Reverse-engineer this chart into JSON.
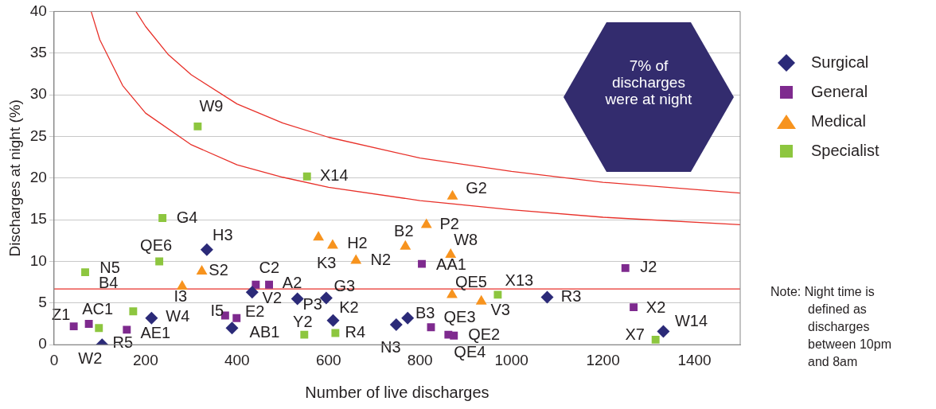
{
  "chart_data": {
    "type": "scatter",
    "xlabel": "Number of live discharges",
    "ylabel": "Discharges at night (%)",
    "xlim": [
      0,
      1500
    ],
    "xticks": [
      0,
      200,
      400,
      600,
      800,
      1000,
      1200,
      1400
    ],
    "ylim": [
      0,
      40
    ],
    "yticks": [
      0,
      5,
      10,
      15,
      20,
      25,
      30,
      35,
      40
    ],
    "grid": "y",
    "legend": "right",
    "series": [
      {
        "name": "Surgical",
        "color": "#2b2a78",
        "marker": "diamond",
        "x": [
          334,
          433,
          105,
          213,
          389,
          532,
          595,
          610,
          748,
          773,
          1078,
          1332
        ],
        "values": [
          11.4,
          6.3,
          0.0,
          3.2,
          2.0,
          5.5,
          5.6,
          2.9,
          2.4,
          3.2,
          5.7,
          1.6
        ]
      },
      {
        "name": "General",
        "color": "#7e2a8e",
        "marker": "square",
        "x": [
          441,
          470,
          43,
          76,
          159,
          374,
          399,
          804,
          824,
          862,
          874,
          1249,
          1267
        ],
        "values": [
          7.2,
          7.2,
          2.2,
          2.5,
          1.8,
          3.5,
          3.2,
          9.7,
          2.1,
          1.2,
          1.1,
          9.2,
          4.5
        ]
      },
      {
        "name": "Medical",
        "color": "#f7931e",
        "marker": "triangle",
        "x": [
          323,
          280,
          578,
          609,
          660,
          768,
          814,
          871,
          867,
          870,
          934
        ],
        "values": [
          8.8,
          7.0,
          12.9,
          11.9,
          10.1,
          11.8,
          14.4,
          17.8,
          10.8,
          6.0,
          5.2
        ]
      },
      {
        "name": "Specialist",
        "color": "#8dc63f",
        "marker": "square",
        "x": [
          314,
          237,
          230,
          68,
          70,
          98,
          173,
          553,
          547,
          615,
          970,
          1315
        ],
        "values": [
          26.2,
          15.2,
          10.0,
          8.7,
          null,
          2.0,
          4.0,
          20.2,
          1.2,
          1.4,
          6.0,
          0.6
        ]
      },
      {
        "type": "line",
        "color": "#e8312a",
        "marker": "none",
        "x": [
          81,
          100,
          150,
          200,
          300,
          400,
          500,
          600,
          800,
          1000,
          1200,
          1500
        ],
        "values": [
          40,
          36.6,
          31.1,
          27.8,
          24.0,
          21.6,
          20.1,
          18.9,
          17.3,
          16.2,
          15.3,
          14.4
        ]
      },
      {
        "type": "line",
        "color": "#e8312a",
        "marker": "none",
        "x": [
          179,
          200,
          250,
          300,
          400,
          500,
          600,
          800,
          1000,
          1200,
          1500
        ],
        "values": [
          40,
          38.2,
          34.8,
          32.4,
          28.9,
          26.6,
          24.9,
          22.4,
          20.8,
          19.5,
          18.2
        ]
      }
    ],
    "ref_lines": [
      {
        "axis": "y",
        "value": 6.7,
        "color": "#e8312a"
      }
    ],
    "annotations": [
      "7% of discharges were at night",
      "Note: Night time is defined as discharges between 10pm and 8am",
      {
        "text": "W9",
        "x": 314,
        "y": 26.2
      },
      {
        "text": "X14",
        "x": 553,
        "y": 20.2
      },
      {
        "text": "G2",
        "x": 871,
        "y": 17.8
      },
      {
        "text": "G4",
        "x": 237,
        "y": 15.2
      },
      {
        "text": "H3",
        "x": 334,
        "y": 11.4
      },
      {
        "text": "QE6",
        "x": 230,
        "y": 10.0
      },
      {
        "text": "S2",
        "x": 323,
        "y": 8.8
      },
      {
        "text": "N5",
        "x": 68,
        "y": 8.7
      },
      {
        "text": "B4",
        "x": 70,
        "y": 8.6
      },
      {
        "text": "I3",
        "x": 280,
        "y": 7.0
      },
      {
        "text": "C2",
        "x": 441,
        "y": 7.2
      },
      {
        "text": "A2",
        "x": 470,
        "y": 7.2
      },
      {
        "text": "V2",
        "x": 433,
        "y": 6.3
      },
      {
        "text": "Z1",
        "x": 43,
        "y": 2.2
      },
      {
        "text": "AC1",
        "x": 76,
        "y": 2.5
      },
      {
        "text": "W2",
        "x": 98,
        "y": 2.0
      },
      {
        "text": "R5",
        "x": 105,
        "y": 0.0
      },
      {
        "text": "AE1",
        "x": 159,
        "y": 1.8
      },
      {
        "text": "W4",
        "x": 213,
        "y": 3.2
      },
      {
        "text": "I5",
        "x": 374,
        "y": 3.5
      },
      {
        "text": "E2",
        "x": 399,
        "y": 3.2
      },
      {
        "text": "AB1",
        "x": 389,
        "y": 2.0
      },
      {
        "text": "Y2",
        "x": 547,
        "y": 1.2
      },
      {
        "text": "P3",
        "x": 532,
        "y": 5.5
      },
      {
        "text": "G3",
        "x": 595,
        "y": 5.6
      },
      {
        "text": "K2",
        "x": 610,
        "y": 2.9
      },
      {
        "text": "R4",
        "x": 615,
        "y": 1.4
      },
      {
        "text": "K3",
        "x": 578,
        "y": 12.9
      },
      {
        "text": "H2",
        "x": 609,
        "y": 11.9
      },
      {
        "text": "N2",
        "x": 660,
        "y": 10.1
      },
      {
        "text": "B2",
        "x": 768,
        "y": 11.8
      },
      {
        "text": "P2",
        "x": 814,
        "y": 14.4
      },
      {
        "text": "W8",
        "x": 867,
        "y": 10.8
      },
      {
        "text": "AA1",
        "x": 804,
        "y": 9.7
      },
      {
        "text": "QE5",
        "x": 870,
        "y": 6.0
      },
      {
        "text": "V3",
        "x": 934,
        "y": 5.2
      },
      {
        "text": "X13",
        "x": 970,
        "y": 6.0
      },
      {
        "text": "R3",
        "x": 1078,
        "y": 5.7
      },
      {
        "text": "N3",
        "x": 748,
        "y": 2.4
      },
      {
        "text": "B3",
        "x": 773,
        "y": 3.2
      },
      {
        "text": "QE3",
        "x": 824,
        "y": 2.1
      },
      {
        "text": "QE4",
        "x": 862,
        "y": 1.2
      },
      {
        "text": "QE2",
        "x": 874,
        "y": 1.1
      },
      {
        "text": "J2",
        "x": 1249,
        "y": 9.2
      },
      {
        "text": "X2",
        "x": 1267,
        "y": 4.5
      },
      {
        "text": "W14",
        "x": 1332,
        "y": 1.6
      },
      {
        "text": "X7",
        "x": 1315,
        "y": 0.6
      }
    ]
  }
}
